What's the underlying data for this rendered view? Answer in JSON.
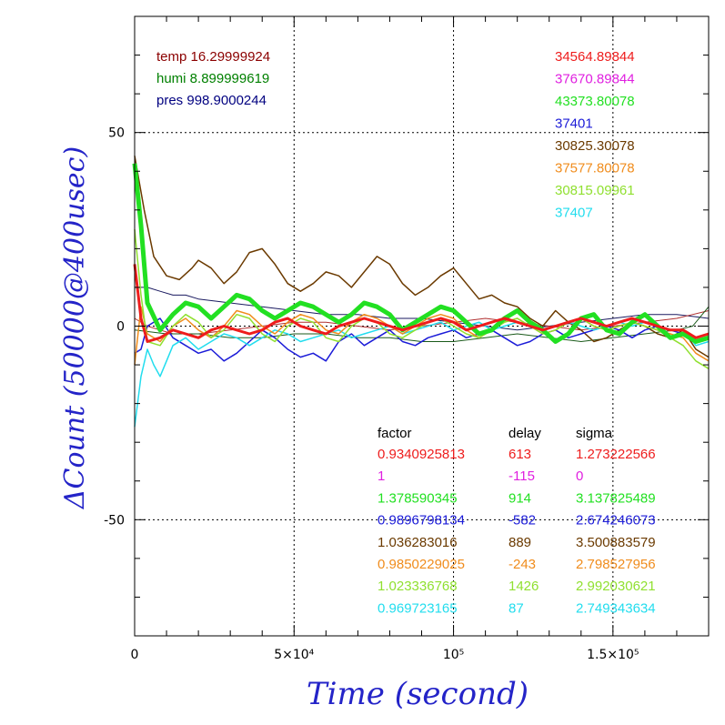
{
  "chart_data": {
    "type": "line",
    "xlabel": "Time (second)",
    "ylabel": "ΔCount (50000@400usec)",
    "xlim": [
      0,
      180000
    ],
    "ylim": [
      -80,
      80
    ],
    "x_ticks": [
      {
        "value": 0,
        "label": "0"
      },
      {
        "value": 50000,
        "label": "5×10⁴"
      },
      {
        "value": 100000,
        "label": "10⁵"
      },
      {
        "value": 150000,
        "label": "1.5×10⁵"
      }
    ],
    "y_ticks": [
      {
        "value": 50,
        "label": "50"
      },
      {
        "value": 0,
        "label": "0"
      },
      {
        "value": -50,
        "label": "-50"
      }
    ],
    "grid": true,
    "environment": [
      {
        "text": "temp 16.29999924",
        "color": "#8b0000"
      },
      {
        "text": "humi 8.899999619",
        "color": "#008000"
      },
      {
        "text": "pres 998.9000244",
        "color": "#000080"
      }
    ],
    "channels": [
      "34564.89844",
      "37670.89844",
      "43373.80078",
      "37401",
      "30825.30078",
      "37577.80078",
      "30815.09961",
      "37407"
    ],
    "table_header": {
      "factor": "factor",
      "delay": "delay",
      "sigma": "sigma"
    },
    "table_rows": [
      {
        "factor": "0.9340925813",
        "delay": "613",
        "sigma": "1.273222566"
      },
      {
        "factor": "1",
        "delay": "-115",
        "sigma": "0"
      },
      {
        "factor": "1.378590345",
        "delay": "914",
        "sigma": "3.137825489"
      },
      {
        "factor": "0.9896798134",
        "delay": "-582",
        "sigma": "2.674246073"
      },
      {
        "factor": "1.036283016",
        "delay": "889",
        "sigma": "3.500883579"
      },
      {
        "factor": "0.9850229025",
        "delay": "-243",
        "sigma": "2.798527956"
      },
      {
        "factor": "1.023336768",
        "delay": "1426",
        "sigma": "2.992030621"
      },
      {
        "factor": "0.969723165",
        "delay": "87",
        "sigma": "2.749343634"
      }
    ],
    "series": [
      {
        "color": "#6b3a00",
        "width": 1.5,
        "x": [
          0,
          3000,
          6000,
          10000,
          14000,
          18000,
          20000,
          24000,
          28000,
          32000,
          36000,
          40000,
          44000,
          48000,
          52000,
          56000,
          60000,
          64000,
          68000,
          72000,
          76000,
          80000,
          84000,
          88000,
          92000,
          96000,
          100000,
          104000,
          108000,
          112000,
          116000,
          120000,
          124000,
          128000,
          132000,
          136000,
          140000,
          144000,
          148000,
          152000,
          156000,
          160000,
          164000,
          168000,
          172000,
          176000,
          180000
        ],
        "y": [
          44,
          30,
          18,
          13,
          12,
          15,
          17,
          15,
          11,
          14,
          19,
          20,
          16,
          11,
          9,
          11,
          14,
          13,
          10,
          14,
          18,
          16,
          11,
          8,
          10,
          13,
          15,
          11,
          7,
          8,
          6,
          5,
          2,
          0,
          4,
          1,
          -1,
          -4,
          -3,
          -1,
          1,
          0,
          -2,
          -3,
          -1,
          -6,
          -8
        ]
      },
      {
        "color": "#22e022",
        "width": 5,
        "x": [
          0,
          2000,
          4000,
          8000,
          12000,
          16000,
          20000,
          24000,
          28000,
          32000,
          36000,
          40000,
          44000,
          48000,
          52000,
          56000,
          60000,
          64000,
          68000,
          72000,
          76000,
          80000,
          84000,
          88000,
          92000,
          96000,
          100000,
          104000,
          108000,
          112000,
          116000,
          120000,
          124000,
          128000,
          132000,
          136000,
          140000,
          144000,
          148000,
          152000,
          156000,
          160000,
          164000,
          168000,
          172000,
          176000,
          180000
        ],
        "y": [
          42,
          26,
          6,
          -1,
          3,
          6,
          5,
          2,
          5,
          8,
          7,
          4,
          2,
          4,
          6,
          5,
          3,
          1,
          3,
          6,
          5,
          3,
          -1,
          1,
          3,
          5,
          4,
          1,
          -2,
          -1,
          2,
          4,
          1,
          -1,
          -4,
          -2,
          2,
          3,
          -1,
          -2,
          1,
          3,
          0,
          -3,
          -2,
          -4,
          -3
        ]
      },
      {
        "color": "#ee1c1c",
        "width": 3,
        "x": [
          0,
          2000,
          4000,
          8000,
          12000,
          16000,
          20000,
          24000,
          28000,
          32000,
          36000,
          40000,
          44000,
          48000,
          52000,
          56000,
          60000,
          64000,
          68000,
          72000,
          76000,
          80000,
          84000,
          88000,
          92000,
          96000,
          100000,
          104000,
          108000,
          112000,
          116000,
          120000,
          124000,
          128000,
          132000,
          136000,
          140000,
          144000,
          148000,
          152000,
          156000,
          160000,
          164000,
          168000,
          172000,
          176000,
          180000
        ],
        "y": [
          16,
          2,
          -4,
          -3,
          -1,
          -2,
          -3,
          -1,
          0,
          -1,
          -2,
          -1,
          1,
          2,
          0,
          -1,
          -2,
          0,
          1,
          2,
          1,
          0,
          -1,
          0,
          1,
          2,
          1,
          -1,
          0,
          1,
          2,
          1,
          0,
          -1,
          0,
          1,
          2,
          1,
          0,
          1,
          2,
          1,
          0,
          -1,
          -1,
          -3,
          -2
        ]
      },
      {
        "color": "#1c1cd8",
        "width": 1.5,
        "x": [
          0,
          2000,
          4000,
          8000,
          12000,
          16000,
          20000,
          24000,
          28000,
          32000,
          36000,
          40000,
          44000,
          48000,
          52000,
          56000,
          60000,
          64000,
          68000,
          72000,
          76000,
          80000,
          84000,
          88000,
          92000,
          96000,
          100000,
          104000,
          108000,
          112000,
          116000,
          120000,
          124000,
          128000,
          132000,
          136000,
          140000,
          144000,
          148000,
          152000,
          156000,
          160000,
          164000,
          168000,
          172000,
          176000,
          180000
        ],
        "y": [
          -7,
          -6,
          0,
          2,
          -3,
          -5,
          -7,
          -6,
          -9,
          -7,
          -4,
          -1,
          -3,
          -6,
          -8,
          -7,
          -9,
          -4,
          -2,
          -5,
          -3,
          -1,
          -4,
          -5,
          -3,
          -2,
          -1,
          -3,
          -2,
          -1,
          -3,
          -5,
          -4,
          -2,
          -1,
          -3,
          -2,
          -1,
          0,
          -1,
          -3,
          -1,
          0,
          -1,
          -2,
          -3,
          -2
        ]
      },
      {
        "color": "#22ddee",
        "width": 1.5,
        "x": [
          0,
          2000,
          4000,
          6000,
          8000,
          10000,
          12000,
          16000,
          20000,
          24000,
          28000,
          32000,
          36000,
          40000,
          44000,
          48000,
          52000,
          56000,
          60000,
          64000,
          68000,
          72000,
          76000,
          80000,
          84000,
          88000,
          92000,
          96000,
          100000,
          104000,
          108000,
          112000,
          116000,
          120000,
          124000,
          128000,
          132000,
          136000,
          140000,
          144000,
          148000,
          152000,
          156000,
          160000,
          164000,
          168000,
          172000,
          176000,
          180000
        ],
        "y": [
          -26,
          -13,
          -6,
          -10,
          -13,
          -9,
          -5,
          -3,
          -6,
          -4,
          -2,
          -3,
          -5,
          -3,
          -1,
          -2,
          -4,
          -3,
          -2,
          -1,
          -3,
          -2,
          -1,
          0,
          -2,
          -1,
          0,
          1,
          -1,
          0,
          1,
          -1,
          0,
          1,
          0,
          -1,
          0,
          1,
          0,
          -1,
          0,
          1,
          0,
          1,
          0,
          -1,
          -1,
          -5,
          -4
        ]
      },
      {
        "color": "#f08c1c",
        "width": 1.5,
        "x": [
          0,
          2000,
          4000,
          8000,
          12000,
          16000,
          20000,
          24000,
          28000,
          32000,
          36000,
          40000,
          44000,
          48000,
          52000,
          56000,
          60000,
          64000,
          68000,
          72000,
          76000,
          80000,
          84000,
          88000,
          92000,
          96000,
          100000,
          104000,
          108000,
          112000,
          116000,
          120000,
          124000,
          128000,
          132000,
          136000,
          140000,
          144000,
          148000,
          152000,
          156000,
          160000,
          164000,
          168000,
          172000,
          176000,
          180000
        ],
        "y": [
          -10,
          5,
          -2,
          -4,
          0,
          2,
          -1,
          -3,
          0,
          4,
          3,
          0,
          -2,
          1,
          3,
          2,
          -1,
          -2,
          1,
          3,
          2,
          0,
          -2,
          0,
          2,
          3,
          2,
          -1,
          -3,
          -1,
          1,
          2,
          0,
          -2,
          -1,
          1,
          2,
          0,
          -1,
          0,
          1,
          0,
          -1,
          -2,
          -3,
          -7,
          -9
        ]
      },
      {
        "color": "#90e030",
        "width": 1.5,
        "x": [
          0,
          2000,
          4000,
          8000,
          12000,
          16000,
          20000,
          24000,
          28000,
          32000,
          36000,
          40000,
          44000,
          48000,
          52000,
          56000,
          60000,
          64000,
          68000,
          72000,
          76000,
          80000,
          84000,
          88000,
          92000,
          96000,
          100000,
          104000,
          108000,
          112000,
          116000,
          120000,
          124000,
          128000,
          132000,
          136000,
          140000,
          144000,
          148000,
          152000,
          156000,
          160000,
          164000,
          168000,
          172000,
          176000,
          180000
        ],
        "y": [
          25,
          8,
          -4,
          -5,
          0,
          3,
          1,
          -3,
          -1,
          3,
          2,
          -2,
          -4,
          0,
          2,
          1,
          -3,
          -4,
          0,
          2,
          1,
          -2,
          -3,
          -1,
          1,
          2,
          0,
          -2,
          -3,
          -1,
          1,
          2,
          0,
          -2,
          -1,
          1,
          2,
          0,
          -1,
          0,
          1,
          0,
          -1,
          -3,
          -5,
          -9,
          -11
        ]
      },
      {
        "color": "#1a1a60",
        "width": 1,
        "x": [
          0,
          4000,
          8000,
          12000,
          16000,
          20000,
          30000,
          40000,
          50000,
          60000,
          70000,
          80000,
          90000,
          100000,
          110000,
          120000,
          130000,
          140000,
          150000,
          160000,
          170000,
          180000
        ],
        "y": [
          10,
          10,
          9,
          8,
          8,
          7,
          6,
          5,
          4,
          3,
          3,
          2,
          2,
          1,
          0,
          -1,
          0,
          1,
          2,
          3,
          3,
          2
        ]
      },
      {
        "color": "#b03030",
        "width": 1,
        "x": [
          0,
          4000,
          8000,
          12000,
          20000,
          30000,
          40000,
          50000,
          60000,
          70000,
          80000,
          90000,
          100000,
          110000,
          120000,
          130000,
          140000,
          150000,
          160000,
          170000,
          175000,
          180000
        ],
        "y": [
          2,
          0,
          -1,
          -2,
          -2,
          -1,
          0,
          1,
          1,
          0,
          -1,
          0,
          1,
          2,
          1,
          0,
          -1,
          0,
          1,
          2,
          3,
          4
        ]
      },
      {
        "color": "#1a5a1a",
        "width": 1,
        "x": [
          0,
          10000,
          20000,
          30000,
          40000,
          50000,
          60000,
          70000,
          80000,
          90000,
          100000,
          110000,
          120000,
          130000,
          140000,
          150000,
          160000,
          170000,
          175000,
          180000
        ],
        "y": [
          -1,
          -2,
          -2,
          -3,
          -3,
          -2,
          -2,
          -3,
          -3,
          -4,
          -4,
          -3,
          -2,
          -3,
          -4,
          -3,
          -2,
          -1,
          0,
          5
        ]
      }
    ]
  }
}
